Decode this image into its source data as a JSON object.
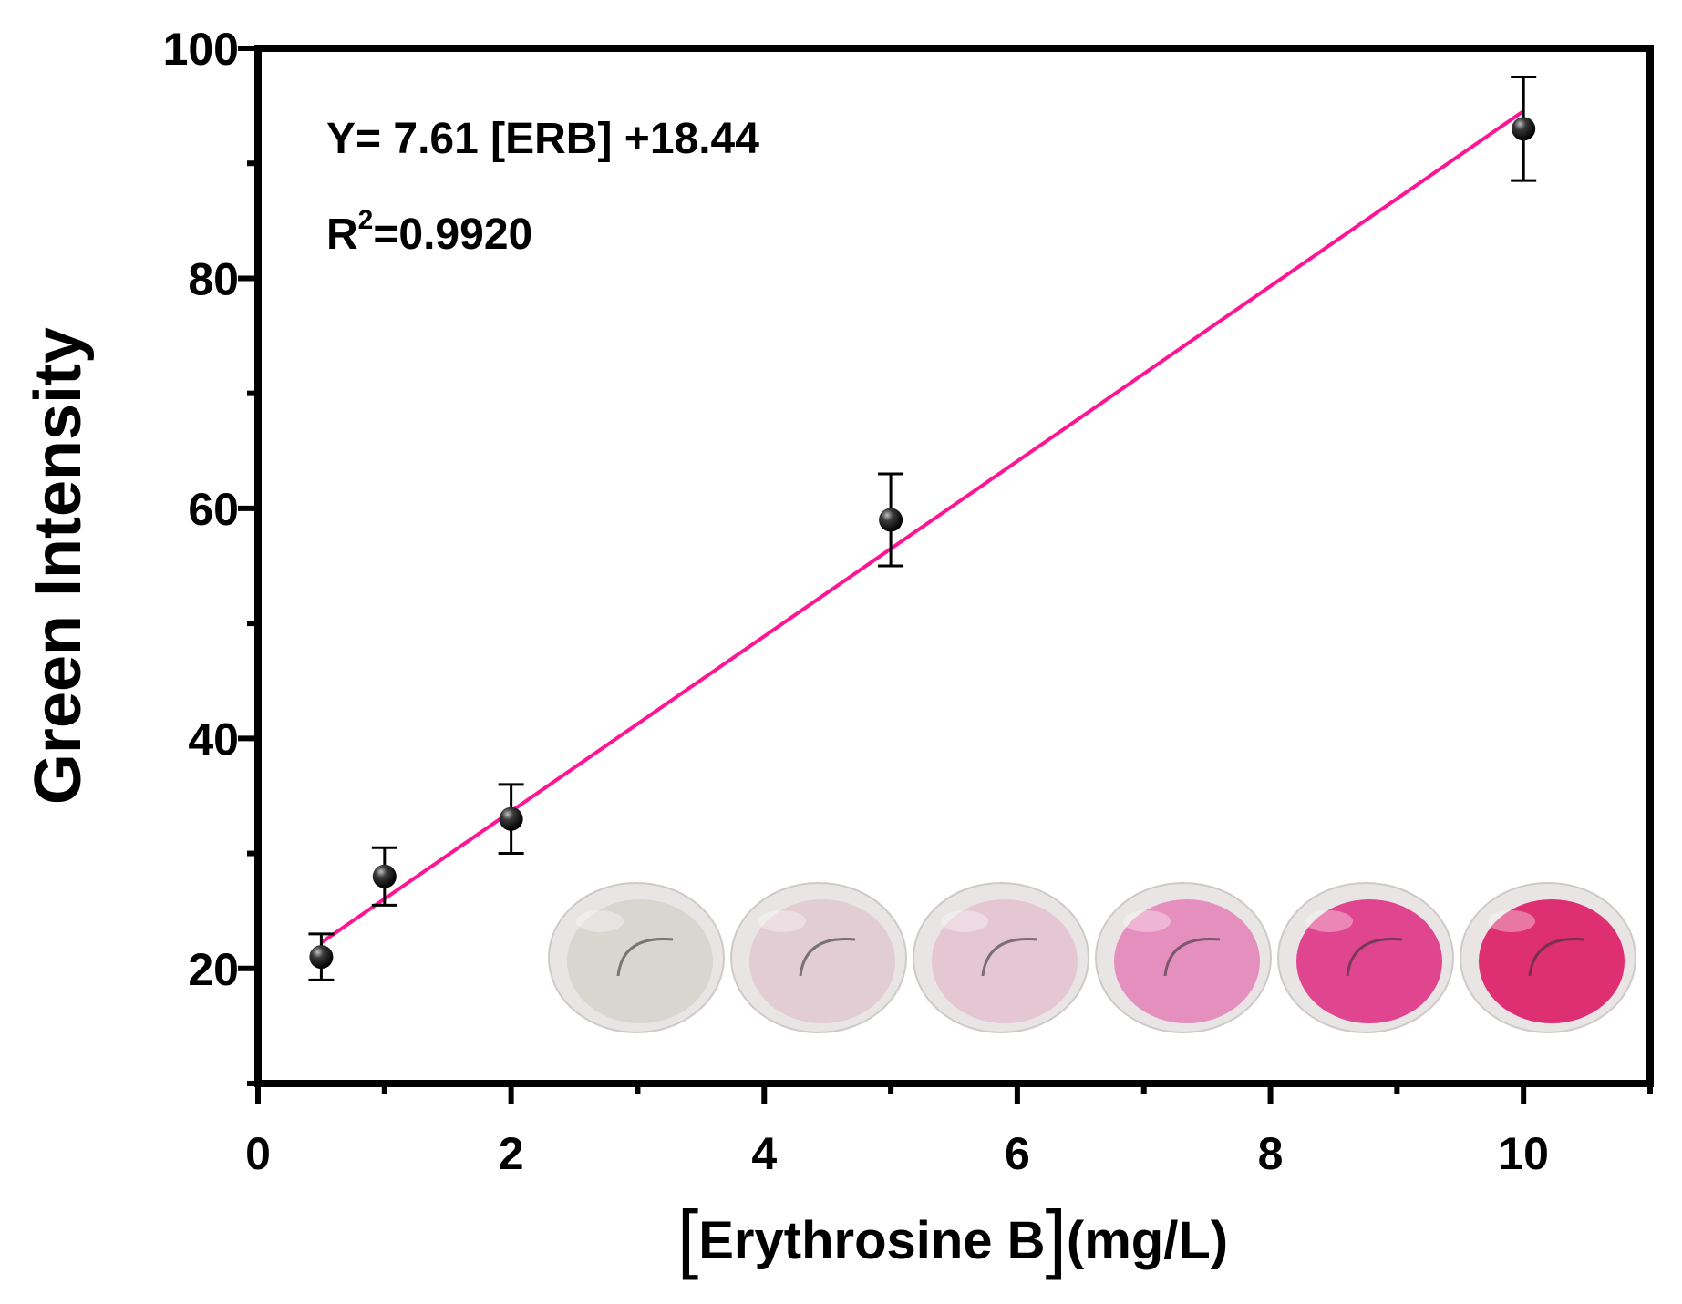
{
  "chart_data": {
    "type": "scatter",
    "x_label": {
      "bracket_open": "[",
      "text": "Erythrosine B",
      "bracket_close": "]",
      "unit": "(mg/L)"
    },
    "y_label": "Green Intensity",
    "xlim": [
      0,
      11
    ],
    "ylim": [
      10,
      100
    ],
    "x_ticks": [
      "0",
      "2",
      "4",
      "6",
      "8",
      "10"
    ],
    "y_ticks": [
      "20",
      "40",
      "60",
      "80",
      "100"
    ],
    "grid": false,
    "series": [
      {
        "marker": "black sphere",
        "points": [
          {
            "x": 0.5,
            "y": 21,
            "err": 2
          },
          {
            "x": 1,
            "y": 28,
            "err": 2.5
          },
          {
            "x": 2,
            "y": 33,
            "err": 3
          },
          {
            "x": 5,
            "y": 59,
            "err": 4
          },
          {
            "x": 10,
            "y": 93,
            "err": 4.5
          }
        ]
      }
    ],
    "fit_line": {
      "slope": 7.61,
      "intercept": 18.44,
      "x_range": [
        0.5,
        10
      ],
      "color": "#ff1493"
    },
    "annotations": {
      "equation": "Y= 7.61 [ERB] +18.44",
      "r2_base": "R",
      "r2_sup": "2",
      "r2_value": "=0.9920"
    },
    "inset": {
      "description_icon": "cuvette-photo-row",
      "cuvette_colors": [
        "#d8d6cf",
        "#e2cdd5",
        "#e4c7d3",
        "#e58fbe",
        "#e0458f",
        "#de2f72"
      ]
    }
  }
}
